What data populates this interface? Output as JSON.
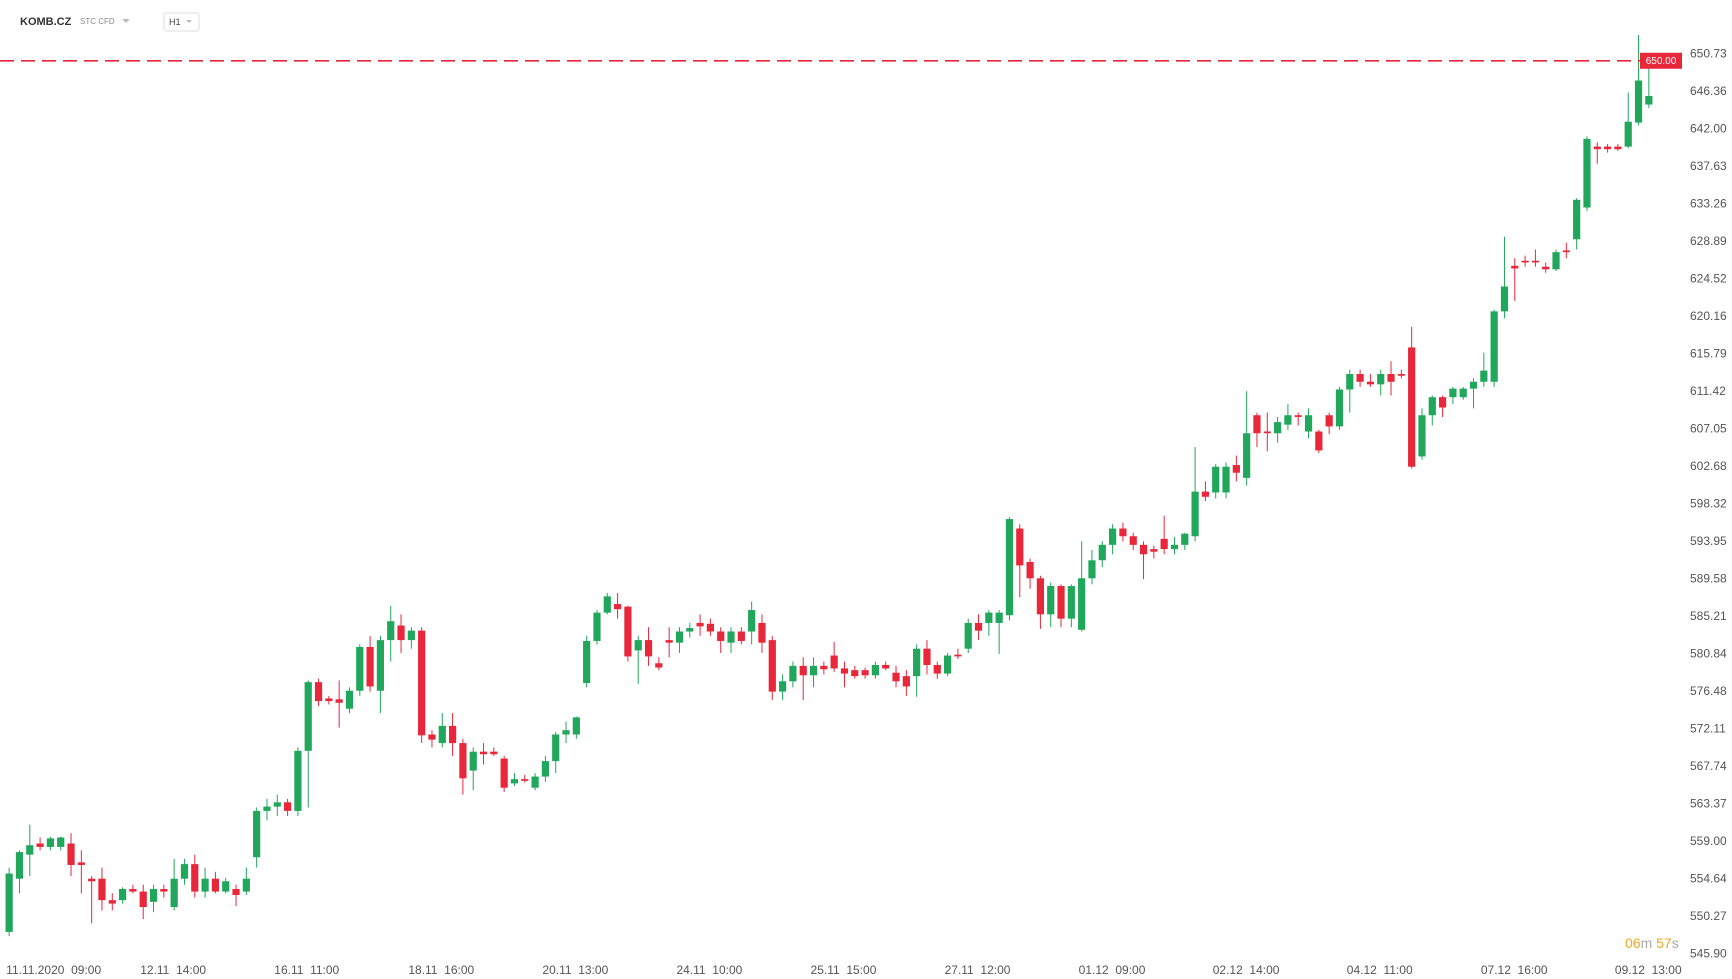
{
  "header": {
    "symbol": "KOMB.CZ",
    "instrument": "STC CFD",
    "timeframe": "H1"
  },
  "countdown": [
    "06",
    "m",
    "57",
    "s"
  ],
  "chart_data": {
    "type": "candlestick",
    "up_color": "#21a75c",
    "down_color": "#e8273b",
    "price_line": {
      "value": 650,
      "label": "650.00",
      "color": "#e8273b"
    },
    "categories": [
      "11.11.2020  09:00",
      null,
      null,
      null,
      null,
      null,
      null,
      null,
      null,
      null,
      null,
      null,
      null,
      "12.11  14:00",
      null,
      null,
      null,
      null,
      null,
      null,
      null,
      null,
      null,
      null,
      null,
      null,
      "16.11  11:00",
      null,
      null,
      null,
      null,
      null,
      null,
      null,
      null,
      null,
      null,
      null,
      null,
      "18.11  16:00",
      null,
      null,
      null,
      null,
      null,
      null,
      null,
      null,
      null,
      null,
      null,
      null,
      "20.11  13:00",
      null,
      null,
      null,
      null,
      null,
      null,
      null,
      null,
      null,
      null,
      null,
      null,
      "24.11  10:00",
      null,
      null,
      null,
      null,
      null,
      null,
      null,
      null,
      null,
      null,
      null,
      null,
      "25.11  15:00",
      null,
      null,
      null,
      null,
      null,
      null,
      null,
      null,
      null,
      null,
      null,
      null,
      "27.11  12:00",
      null,
      null,
      null,
      null,
      null,
      null,
      null,
      null,
      null,
      null,
      null,
      null,
      "01.12  09:00",
      null,
      null,
      null,
      null,
      null,
      null,
      null,
      null,
      null,
      null,
      null,
      null,
      "02.12  14:00",
      null,
      null,
      null,
      null,
      null,
      null,
      null,
      null,
      null,
      null,
      null,
      null,
      "04.12  11:00",
      null,
      null,
      null,
      null,
      null,
      null,
      null,
      null,
      null,
      null,
      null,
      null,
      "07.12  16:00",
      null,
      null,
      null,
      null,
      null,
      null,
      null,
      null,
      null,
      null,
      null,
      null,
      "09.12  13:00",
      null,
      null,
      null
    ],
    "open": [
      548.5,
      554.7,
      557.5,
      558.8,
      558.4,
      558.4,
      558.8,
      556.6,
      554.7,
      554.7,
      552.2,
      552.2,
      553.5,
      553.2,
      552,
      553.5,
      551.4,
      554.7,
      556.4,
      553.2,
      554.7,
      553.2,
      553.5,
      553.2,
      557.2,
      562.6,
      563.1,
      563.6,
      562.6,
      569.6,
      577.6,
      575.7,
      575.6,
      574.5,
      576.6,
      581.7,
      576.6,
      582.5,
      584.2,
      582.5,
      583.6,
      571.5,
      570.5,
      572.5,
      570.5,
      567.3,
      569.5,
      569.5,
      568.7,
      565.8,
      566.3,
      565.3,
      566.6,
      568.4,
      571.5,
      571.5,
      577.5,
      582.4,
      585.7,
      586.7,
      586.4,
      581.3,
      582.5,
      579.8,
      582.5,
      582.2,
      583.5,
      584.5,
      584.4,
      583.5,
      582.2,
      583.5,
      583.5,
      584.5,
      582.5,
      576.5,
      577.7,
      579.5,
      578.4,
      579.5,
      580.7,
      579.2,
      579,
      579,
      578.4,
      579.6,
      578.7,
      578.3,
      578.3,
      581.5,
      579.6,
      578.6,
      580.8,
      581.5,
      584.5,
      584.5,
      584.5,
      585.4,
      595.5,
      591.6,
      589.7,
      585.5,
      588.8,
      585,
      583.7,
      589.7,
      591.8,
      593.6,
      595.5,
      594.6,
      593.6,
      593.1,
      594.3,
      593.1,
      593.6,
      594.6,
      599.8,
      599.7,
      599.7,
      602.9,
      601.4,
      608.7,
      606.8,
      606.6,
      607.6,
      608.7,
      606.8,
      606.8,
      608.7,
      607.4,
      611.7,
      613.5,
      612.6,
      612.3,
      613.5,
      613.5,
      616.6,
      603.9,
      608.7,
      610.8,
      610.8,
      610.8,
      611.8,
      612.6,
      612.6,
      620.8,
      626.1,
      626.7,
      626.7,
      626,
      625.7,
      627.9,
      629.2,
      632.9,
      640,
      640,
      640,
      640,
      642.8,
      644.9
    ],
    "high": [
      556,
      558,
      561,
      559.5,
      559.6,
      559.6,
      560,
      558,
      555,
      556,
      553,
      553.7,
      554,
      554,
      554,
      554,
      557,
      557,
      557.5,
      556,
      555.5,
      554.8,
      554,
      556,
      563,
      564,
      564.5,
      564,
      570,
      577.8,
      578,
      576,
      577.8,
      577,
      582,
      583,
      583,
      586.5,
      585.5,
      584,
      584,
      572,
      574,
      574,
      571,
      570,
      570.5,
      570,
      569,
      567,
      566.8,
      567,
      569,
      571.8,
      573,
      573.6,
      583,
      586,
      588,
      588,
      586.5,
      583,
      584,
      580.5,
      584,
      584,
      584.5,
      585.5,
      585,
      584,
      584,
      584,
      587,
      585.5,
      583,
      578.5,
      580,
      580.5,
      580.5,
      580,
      582.3,
      580,
      579.5,
      579.3,
      580,
      580,
      579.5,
      579,
      582,
      582.5,
      580,
      581,
      581.5,
      585,
      585.5,
      586,
      586,
      596.8,
      596,
      592,
      590,
      589.2,
      589,
      589,
      594,
      593,
      594,
      596,
      596.2,
      595,
      594,
      593.5,
      597,
      594.5,
      595,
      605,
      601,
      603,
      603.2,
      604,
      611.5,
      609,
      609,
      608.5,
      610,
      609,
      609.5,
      607,
      609,
      612,
      614,
      614,
      613.5,
      614,
      615,
      614,
      619,
      609.5,
      611,
      611,
      612,
      612,
      613,
      616,
      621,
      629.5,
      627,
      627.3,
      628,
      626.5,
      628,
      628.8,
      634,
      641.2,
      640.5,
      640.3,
      640.3,
      646.3,
      653,
      649.5
    ],
    "low": [
      548,
      553,
      555,
      558,
      558,
      558,
      555,
      553,
      549.5,
      551,
      551,
      551.8,
      553,
      550,
      550.8,
      552.5,
      551,
      554,
      552.5,
      552.5,
      553,
      553,
      551.5,
      552.8,
      556,
      561.5,
      562,
      562,
      562,
      563,
      574.8,
      575,
      572.3,
      574,
      576,
      576.5,
      574,
      580,
      581,
      581.5,
      570.5,
      570,
      570,
      569,
      564.5,
      565,
      568,
      569,
      564.8,
      565.5,
      565.9,
      565,
      566,
      567,
      570.5,
      571,
      577,
      582,
      585.5,
      585,
      580,
      577.4,
      579.5,
      579,
      580.5,
      581,
      582.8,
      583,
      583,
      581,
      581,
      582,
      582,
      581,
      575.5,
      575.5,
      577,
      575.5,
      577,
      578.5,
      578.8,
      577,
      578,
      578,
      578,
      579,
      577,
      576,
      575.9,
      578.5,
      578,
      578.3,
      580.3,
      581,
      582.5,
      583,
      580.9,
      584.8,
      587.5,
      588.5,
      583.8,
      584,
      584,
      584,
      583.5,
      589,
      591,
      592.5,
      594,
      593,
      589.6,
      592,
      592.5,
      592.5,
      593,
      594,
      598.7,
      599,
      599,
      601,
      600.5,
      605,
      604.5,
      605.5,
      607,
      607.5,
      606,
      604.3,
      606.5,
      607,
      609,
      612,
      612,
      611,
      611,
      613,
      602.5,
      603.5,
      607.5,
      608.5,
      610,
      610.5,
      609.5,
      612,
      612,
      620,
      622,
      626,
      626,
      625.3,
      625.5,
      627,
      628,
      632.5,
      638,
      639.3,
      639.5,
      639.8,
      642.5,
      644.5
    ],
    "close": [
      555.3,
      557.8,
      558.6,
      558.4,
      559.4,
      559.5,
      556.3,
      556.3,
      554.4,
      552.2,
      551.8,
      553.5,
      553.2,
      551.4,
      553.5,
      553.2,
      554.7,
      556.4,
      553.2,
      554.7,
      553.2,
      554.4,
      552.8,
      554.7,
      562.6,
      563.1,
      563.6,
      562.6,
      569.6,
      577.6,
      575.4,
      575.4,
      575.2,
      576.6,
      581.7,
      577.1,
      582.5,
      584.7,
      582.5,
      583.6,
      571.4,
      570.9,
      572.5,
      570.5,
      566.4,
      569.5,
      569.2,
      569.2,
      565.3,
      566.3,
      566.1,
      566.6,
      568.4,
      571.5,
      572,
      573.5,
      582.4,
      585.7,
      587.6,
      586.1,
      580.6,
      582.5,
      580.6,
      579.3,
      582.2,
      583.5,
      583.9,
      584.1,
      583.5,
      582.4,
      583.5,
      582.4,
      586,
      582.2,
      576.5,
      577.7,
      579.5,
      578.4,
      579.5,
      579.1,
      579.2,
      578.6,
      578.3,
      578.4,
      579.6,
      579.2,
      577.7,
      577.1,
      581.5,
      579.6,
      578.6,
      580.7,
      580.6,
      584.5,
      583.6,
      585.7,
      585.7,
      596.6,
      591.2,
      589.7,
      585.5,
      588.8,
      585,
      588.8,
      589.7,
      591.8,
      593.6,
      595.5,
      594.6,
      593.6,
      592.5,
      592.8,
      593.1,
      593.6,
      594.9,
      599.8,
      599.2,
      602.7,
      602.7,
      602,
      606.6,
      606.6,
      606.6,
      607.9,
      608.7,
      608.5,
      608.7,
      604.6,
      607.4,
      611.7,
      613.5,
      612.6,
      612.3,
      613.5,
      612.6,
      613.3,
      602.7,
      608.7,
      610.8,
      609.6,
      611.8,
      611.8,
      612.6,
      613.9,
      620.8,
      623.7,
      625.8,
      626.5,
      626.5,
      625.7,
      627.7,
      627.7,
      633.8,
      640.9,
      639.7,
      639.7,
      639.7,
      642.9,
      647.7,
      645.9
    ],
    "ylim": [
      545.46,
      657.08
    ],
    "yticks": [
      {
        "value": 545.9,
        "label": "545.90"
      },
      550.27,
      554.64,
      {
        "value": 559,
        "label": "559.00"
      },
      563.37,
      567.74,
      572.11,
      576.48,
      580.84,
      585.21,
      589.58,
      593.95,
      598.32,
      602.68,
      607.05,
      611.42,
      615.79,
      620.16,
      624.52,
      628.89,
      633.26,
      637.63,
      {
        "value": 642,
        "label": "642.00"
      },
      646.36,
      650.73
    ]
  }
}
